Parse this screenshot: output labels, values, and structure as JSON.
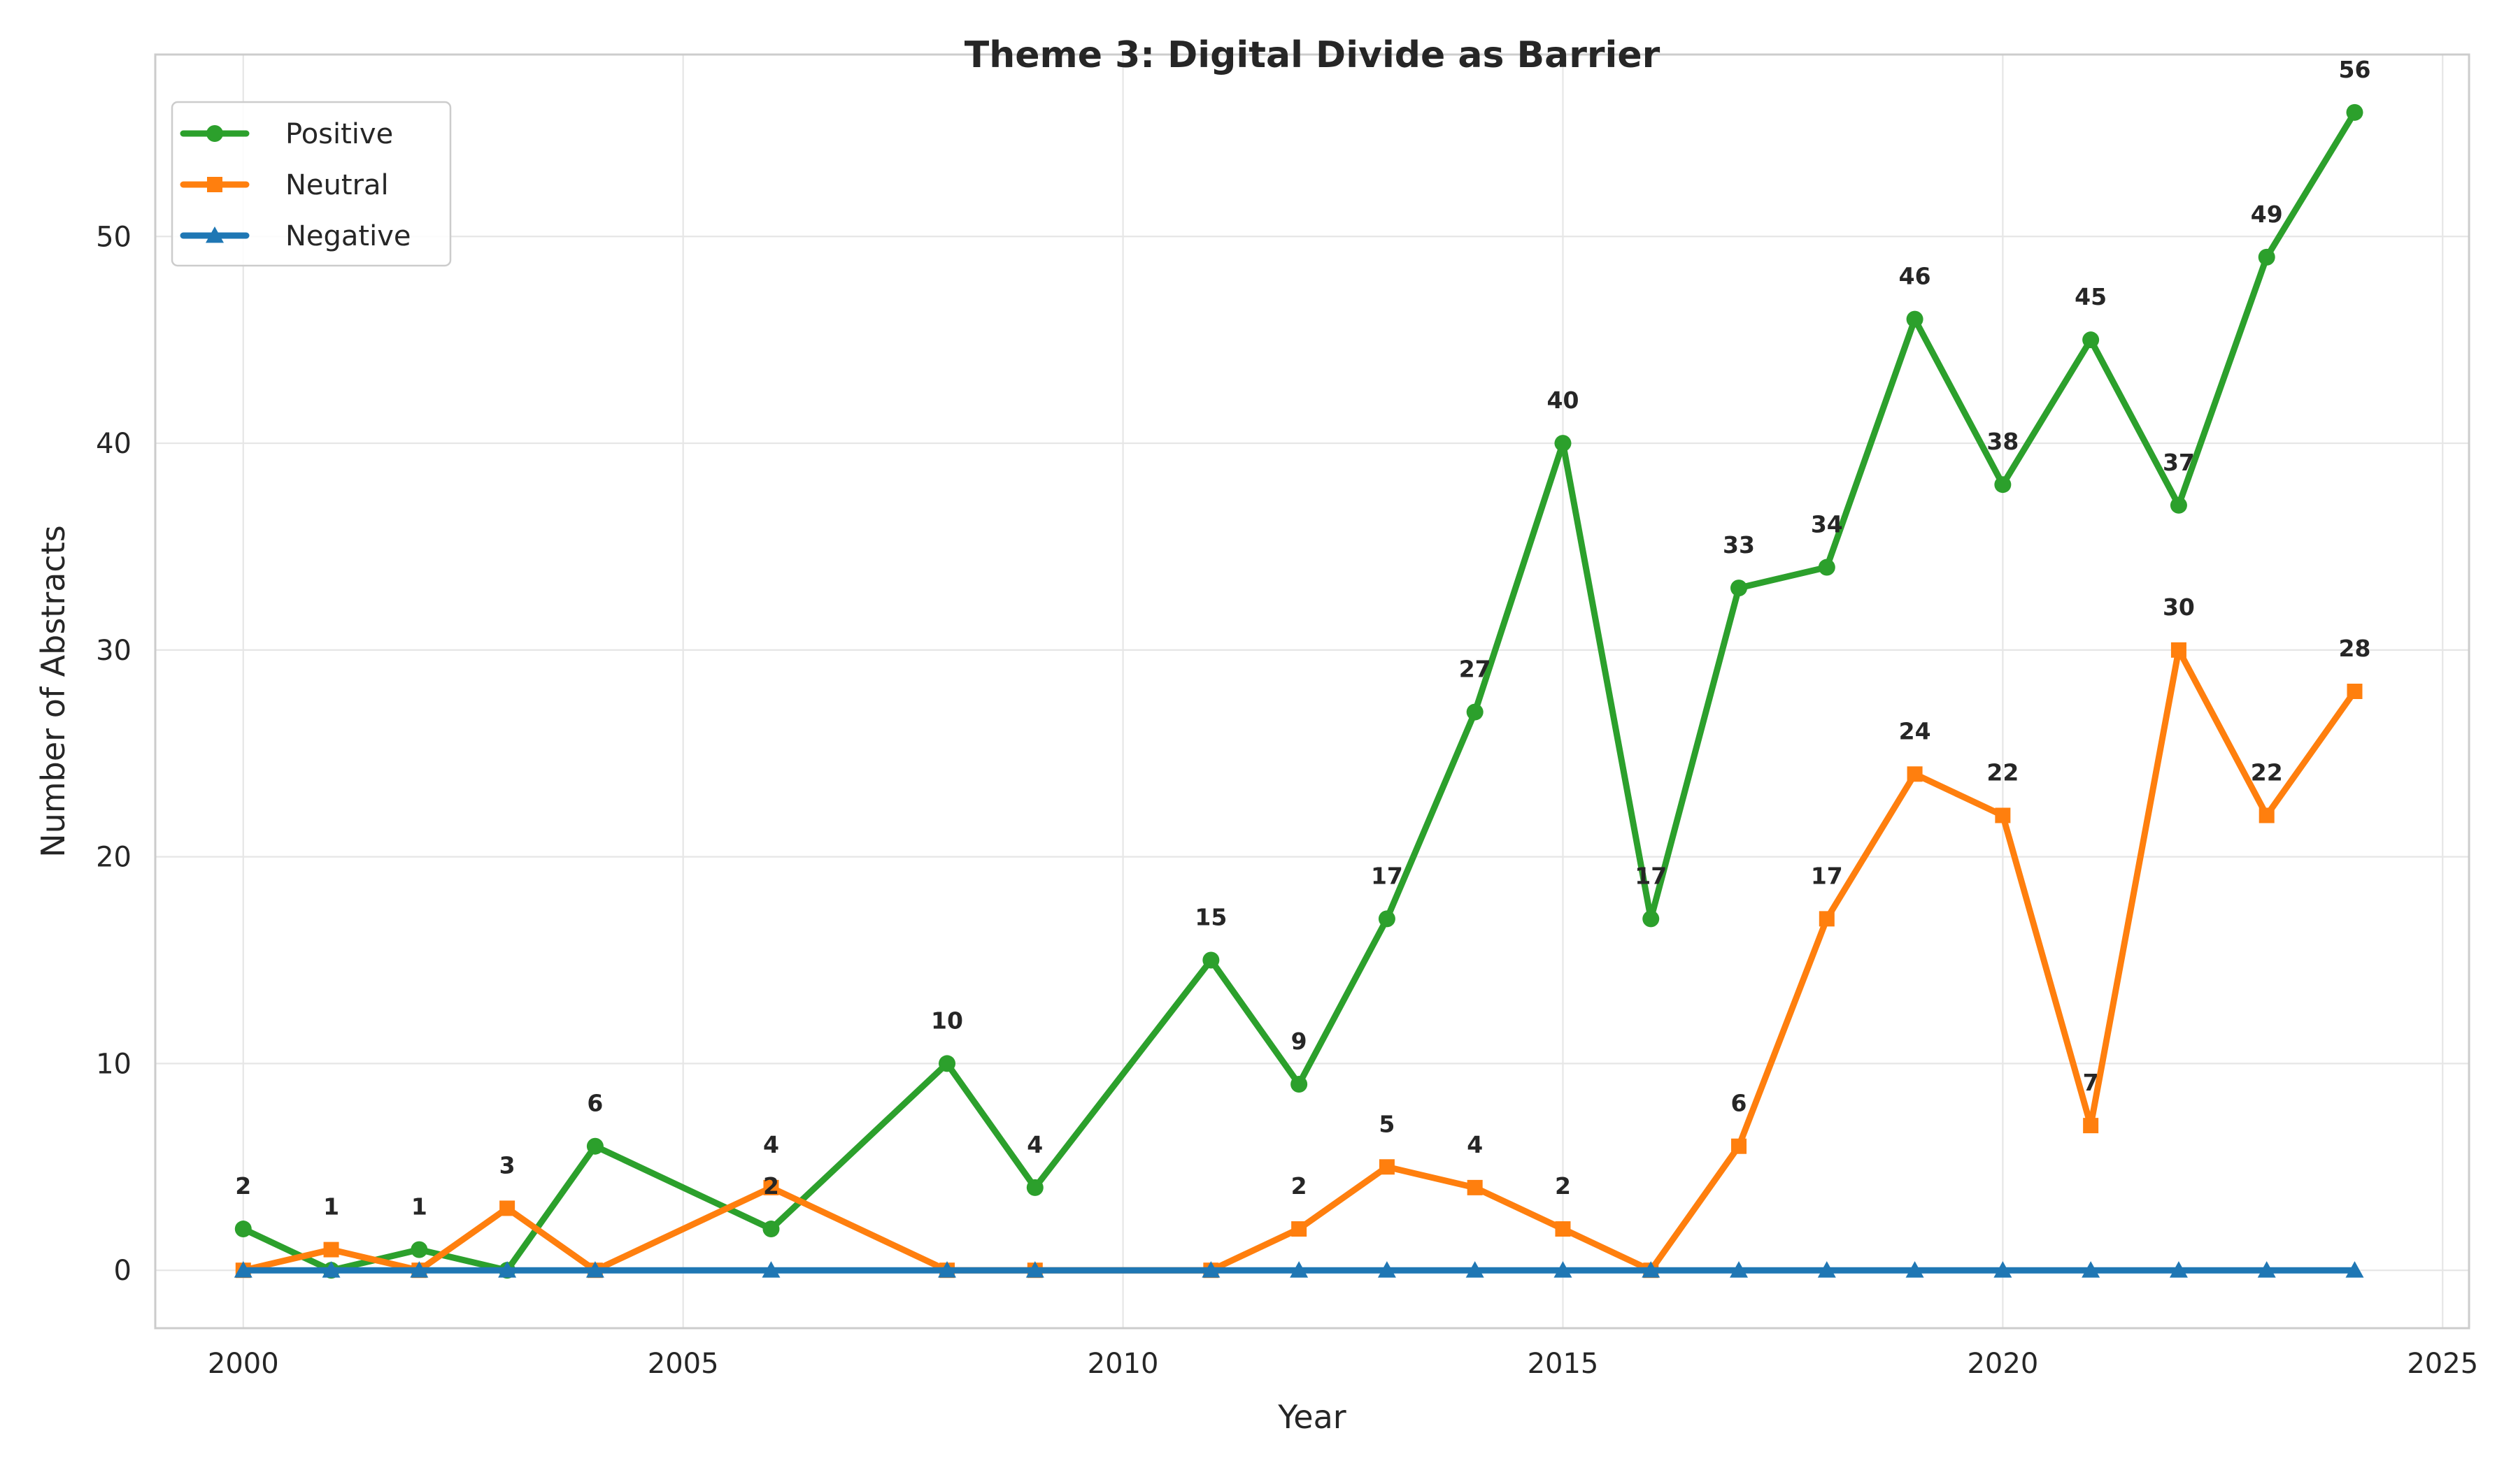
{
  "chart_data": {
    "type": "line",
    "title": "Theme 3: Digital Divide as Barrier",
    "xlabel": "Year",
    "ylabel": "Number of Abstracts",
    "xlim": [
      1999,
      2025.3
    ],
    "ylim": [
      -2.8,
      58.8
    ],
    "xticks": [
      2000,
      2005,
      2010,
      2015,
      2020,
      2025
    ],
    "yticks": [
      0,
      10,
      20,
      30,
      40,
      50
    ],
    "grid": true,
    "legend_position": "top-left",
    "x": [
      2000,
      2001,
      2002,
      2003,
      2004,
      2006,
      2008,
      2009,
      2011,
      2012,
      2013,
      2014,
      2015,
      2016,
      2017,
      2018,
      2019,
      2020,
      2021,
      2022,
      2023,
      2024
    ],
    "series": [
      {
        "name": "Positive",
        "color": "#2ca02c",
        "marker": "circle",
        "values": [
          2,
          0,
          1,
          0,
          6,
          2,
          10,
          4,
          15,
          9,
          17,
          27,
          40,
          17,
          33,
          34,
          46,
          38,
          45,
          37,
          49,
          56
        ]
      },
      {
        "name": "Neutral",
        "color": "#ff7f0e",
        "marker": "square",
        "values": [
          0,
          1,
          0,
          3,
          0,
          4,
          0,
          0,
          0,
          2,
          5,
          4,
          2,
          0,
          6,
          17,
          24,
          22,
          7,
          30,
          22,
          28
        ]
      },
      {
        "name": "Negative",
        "color": "#1f77b4",
        "marker": "triangle",
        "values": [
          0,
          0,
          0,
          0,
          0,
          0,
          0,
          0,
          0,
          0,
          0,
          0,
          0,
          0,
          0,
          0,
          0,
          0,
          0,
          0,
          0,
          0
        ]
      }
    ]
  }
}
